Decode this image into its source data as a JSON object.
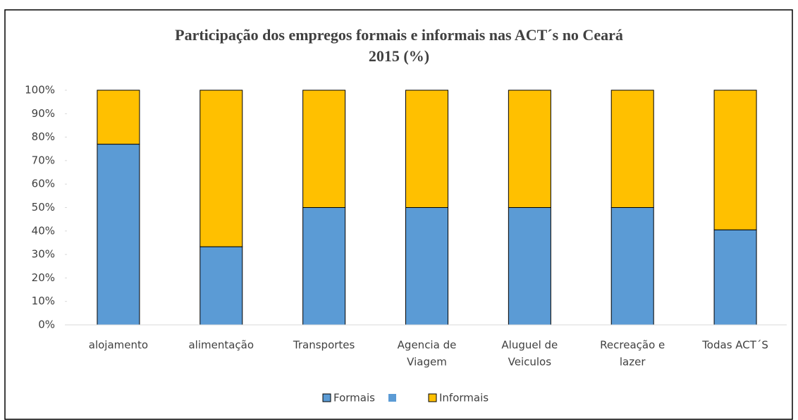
{
  "chart_data": {
    "type": "stacked_bar",
    "title": [
      "Participação dos empregos formais e informais nas ACT´s no Ceará",
      "2015 (%)"
    ],
    "categories": [
      [
        "alojamento"
      ],
      [
        "alimentação"
      ],
      [
        "Transportes"
      ],
      [
        "Agencia de",
        "Viagem"
      ],
      [
        "Aluguel de",
        "Veiculos"
      ],
      [
        "Recreação e",
        "lazer"
      ],
      [
        "Todas ACT´S"
      ]
    ],
    "series": [
      {
        "name": "Formais",
        "color": "#5b9bd5",
        "values": [
          77,
          33.3,
          50,
          50,
          50,
          50,
          40.5
        ]
      },
      {
        "name": "Informais",
        "color": "#ffc000",
        "values": [
          23,
          66.7,
          50,
          50,
          50,
          50,
          59.5
        ]
      }
    ],
    "ylim": [
      0,
      100
    ],
    "yticks": [
      {
        "value": 0,
        "label": "0%"
      },
      {
        "value": 10,
        "label": "10%"
      },
      {
        "value": 20,
        "label": "20%"
      },
      {
        "value": 30,
        "label": "30%"
      },
      {
        "value": 40,
        "label": "40%"
      },
      {
        "value": 50,
        "label": "50%"
      },
      {
        "value": 60,
        "label": "60%"
      },
      {
        "value": 70,
        "label": "70%"
      },
      {
        "value": 80,
        "label": "80%"
      },
      {
        "value": 90,
        "label": "90%"
      },
      {
        "value": 100,
        "label": "100%"
      }
    ],
    "legend": "bottom"
  }
}
